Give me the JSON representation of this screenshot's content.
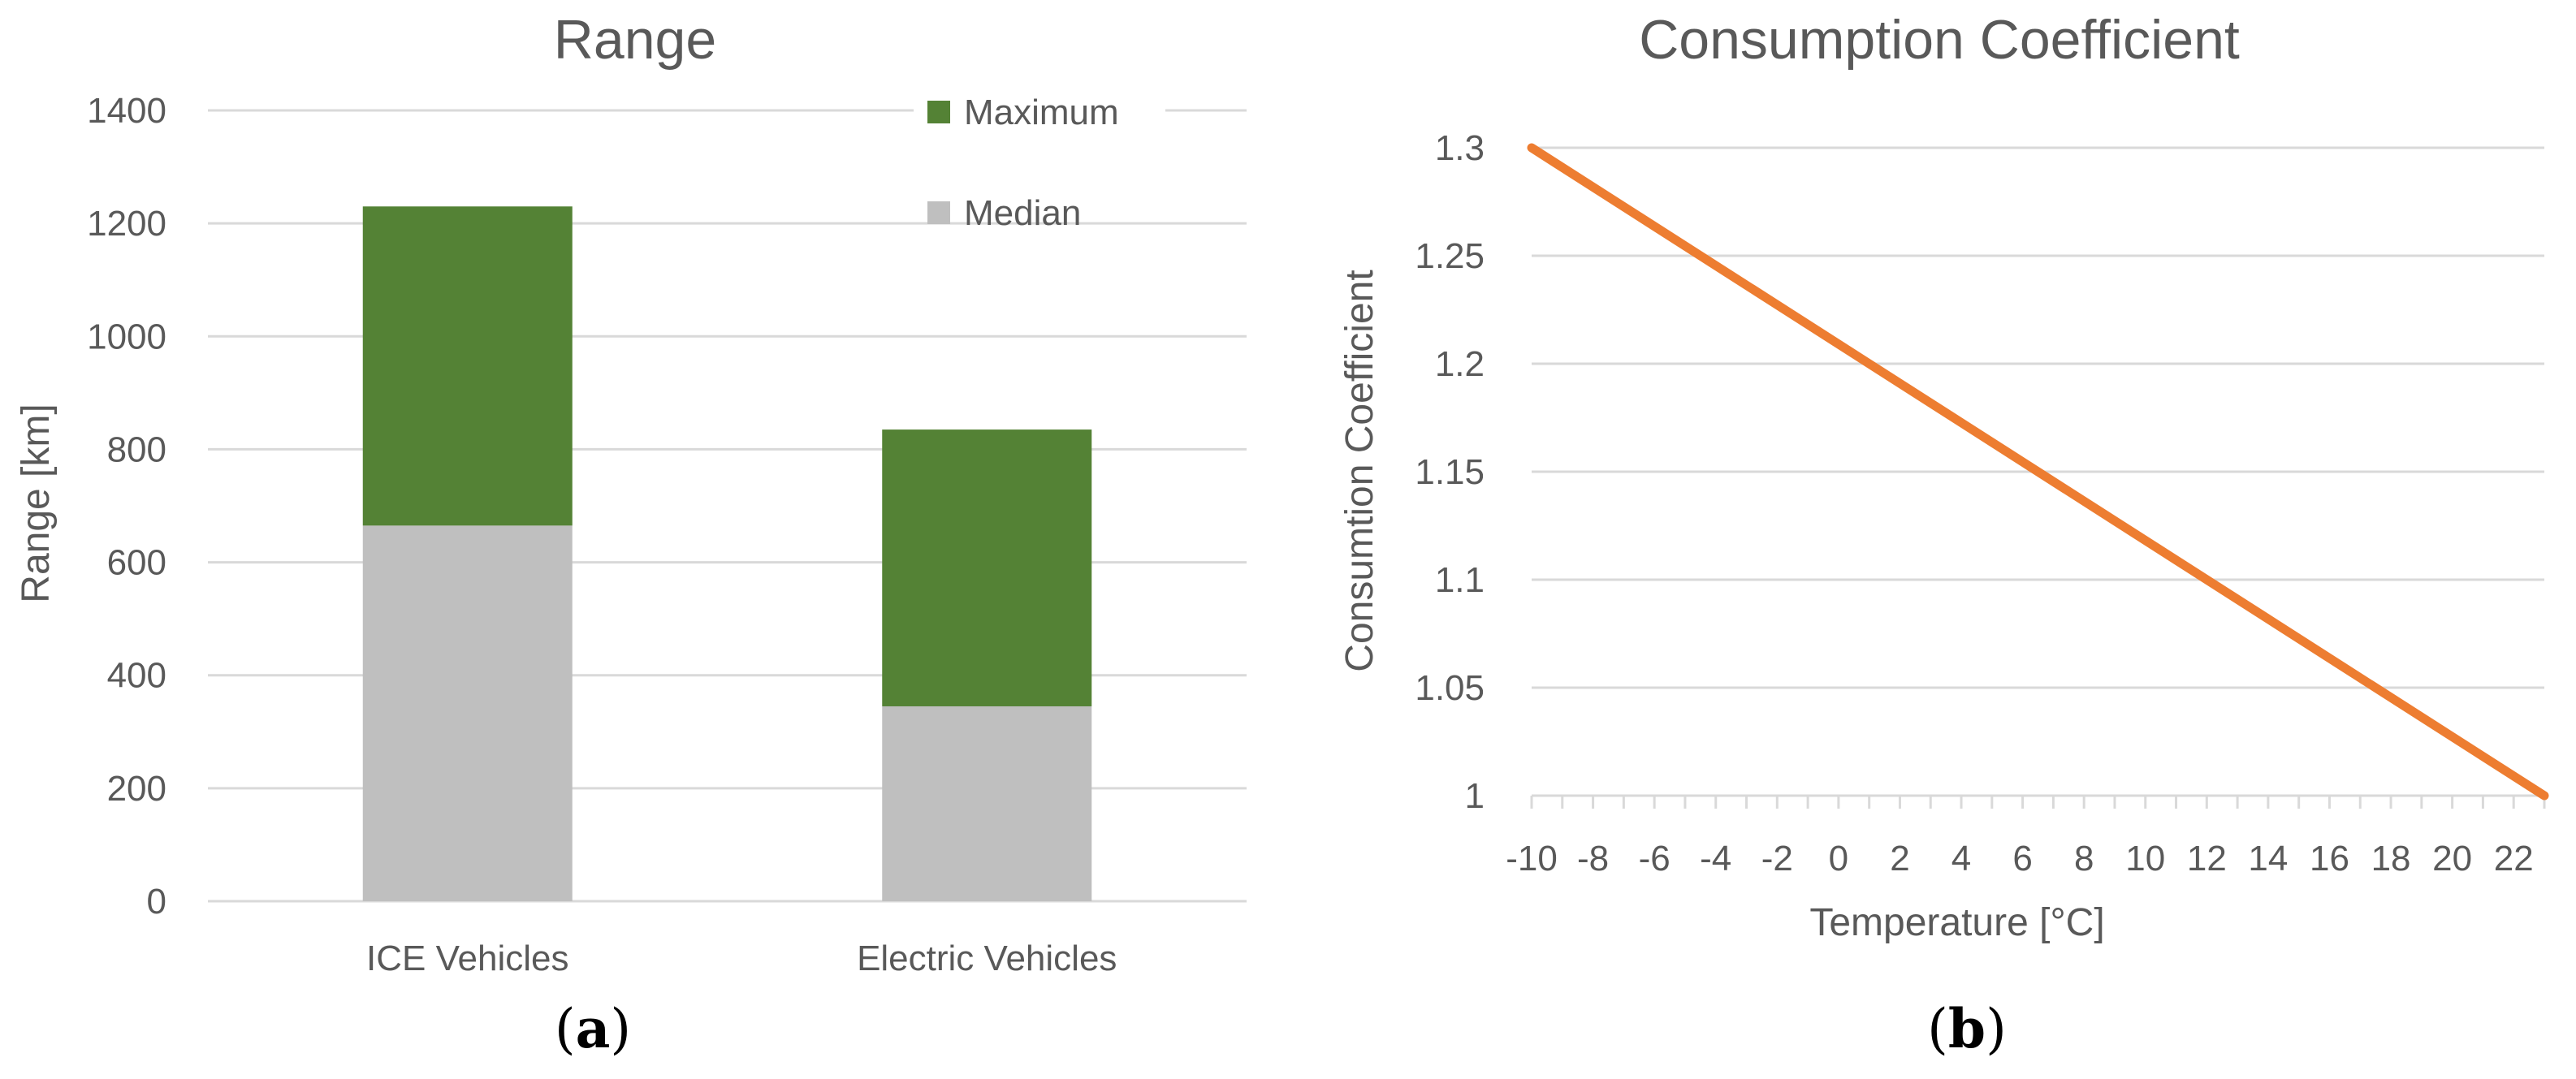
{
  "chart_data": [
    {
      "type": "bar",
      "stacked": true,
      "panel_label": "a",
      "title": "Range",
      "xlabel": "",
      "ylabel": "Range [km]",
      "ylim": [
        0,
        1400
      ],
      "yticks": [
        0,
        200,
        400,
        600,
        800,
        1000,
        1200,
        1400
      ],
      "categories": [
        "ICE Vehicles",
        "Electric Vehicles"
      ],
      "series": [
        {
          "name": "Median",
          "values": [
            665,
            345
          ],
          "color": "#bfbfbf"
        },
        {
          "name": "Maximum",
          "values": [
            565,
            490
          ],
          "color": "#548235"
        }
      ],
      "legend": [
        "Maximum",
        "Median"
      ],
      "legend_position": "top-right",
      "grid": true
    },
    {
      "type": "line",
      "panel_label": "b",
      "title": "Consumption Coefficient",
      "xlabel": "Temperature [°C]",
      "ylabel": "Consumtion Coefficient",
      "xlim": [
        -10,
        23
      ],
      "ylim": [
        1,
        1.3
      ],
      "xticks": [
        -10,
        -8,
        -6,
        -4,
        -2,
        0,
        2,
        4,
        6,
        8,
        10,
        12,
        14,
        16,
        18,
        20,
        22
      ],
      "yticks": [
        "1",
        "1.05",
        "1.1",
        "1.15",
        "1.2",
        "1.25",
        "1.3"
      ],
      "series": [
        {
          "name": "Consumption Coefficient",
          "x": [
            -10,
            23
          ],
          "y": [
            1.3,
            1.0
          ],
          "color": "#ed7d31"
        }
      ],
      "grid": true
    }
  ]
}
